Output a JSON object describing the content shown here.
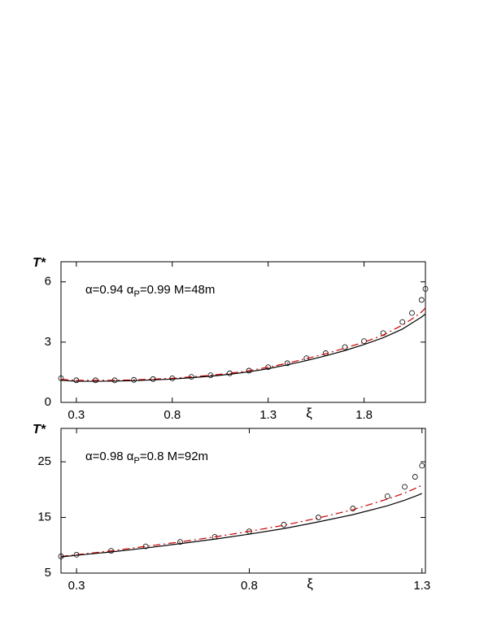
{
  "chart_data": [
    {
      "type": "line",
      "ylabel": "T*",
      "xlabel": "ξ",
      "annotation": [
        "α=0.94 α",
        "P",
        "=0.99 M=48m"
      ],
      "xlim": [
        0.22,
        2.12
      ],
      "ylim": [
        0,
        7
      ],
      "xticks": [
        0.3,
        0.8,
        1.3,
        1.8
      ],
      "yticks": [
        0,
        3,
        6
      ],
      "x": [
        0.22,
        0.3,
        0.4,
        0.5,
        0.6,
        0.7,
        0.8,
        0.9,
        1.0,
        1.1,
        1.2,
        1.3,
        1.4,
        1.5,
        1.6,
        1.7,
        1.8,
        1.9,
        2.0,
        2.05,
        2.1,
        2.12
      ],
      "series": [
        {
          "color": "#000000",
          "marker": "circle",
          "values": [
            1.2,
            1.1,
            1.1,
            1.1,
            1.12,
            1.16,
            1.2,
            1.27,
            1.35,
            1.45,
            1.58,
            1.75,
            1.95,
            2.2,
            2.45,
            2.75,
            3.05,
            3.45,
            4.0,
            4.45,
            5.1,
            5.65
          ]
        },
        {
          "color": "#cc0000",
          "line_style": "dashdot",
          "values": [
            1.15,
            1.1,
            1.1,
            1.1,
            1.12,
            1.16,
            1.2,
            1.27,
            1.35,
            1.45,
            1.58,
            1.75,
            1.95,
            2.18,
            2.42,
            2.7,
            3.0,
            3.35,
            3.85,
            4.15,
            4.5,
            4.7
          ]
        },
        {
          "color": "#000000",
          "line_style": "solid",
          "values": [
            1.1,
            1.05,
            1.05,
            1.06,
            1.08,
            1.12,
            1.16,
            1.23,
            1.3,
            1.4,
            1.52,
            1.68,
            1.87,
            2.08,
            2.32,
            2.58,
            2.88,
            3.22,
            3.65,
            3.95,
            4.25,
            4.4
          ]
        }
      ]
    },
    {
      "type": "line",
      "ylabel": "T*",
      "xlabel": "ξ",
      "annotation": [
        "α=0.98 α",
        "P",
        "=0.8 M=92m"
      ],
      "xlim": [
        0.255,
        1.31
      ],
      "ylim": [
        5,
        31
      ],
      "xticks": [
        0.3,
        0.8,
        1.3
      ],
      "yticks": [
        5,
        15,
        25
      ],
      "x": [
        0.255,
        0.3,
        0.4,
        0.5,
        0.6,
        0.7,
        0.8,
        0.9,
        1.0,
        1.1,
        1.2,
        1.25,
        1.28,
        1.3
      ],
      "series": [
        {
          "color": "#000000",
          "marker": "circle",
          "values": [
            8.0,
            8.3,
            9.0,
            9.8,
            10.6,
            11.5,
            12.5,
            13.7,
            15.0,
            16.6,
            18.8,
            20.5,
            22.3,
            24.3
          ]
        },
        {
          "color": "#cc0000",
          "line_style": "dashdot",
          "values": [
            8.0,
            8.3,
            9.0,
            9.8,
            10.6,
            11.5,
            12.5,
            13.6,
            14.9,
            16.4,
            18.3,
            19.4,
            20.2,
            20.8
          ]
        },
        {
          "color": "#000000",
          "line_style": "solid",
          "values": [
            7.9,
            8.2,
            8.8,
            9.5,
            10.3,
            11.1,
            12.0,
            13.0,
            14.2,
            15.5,
            17.1,
            18.1,
            18.8,
            19.3
          ]
        }
      ]
    }
  ]
}
